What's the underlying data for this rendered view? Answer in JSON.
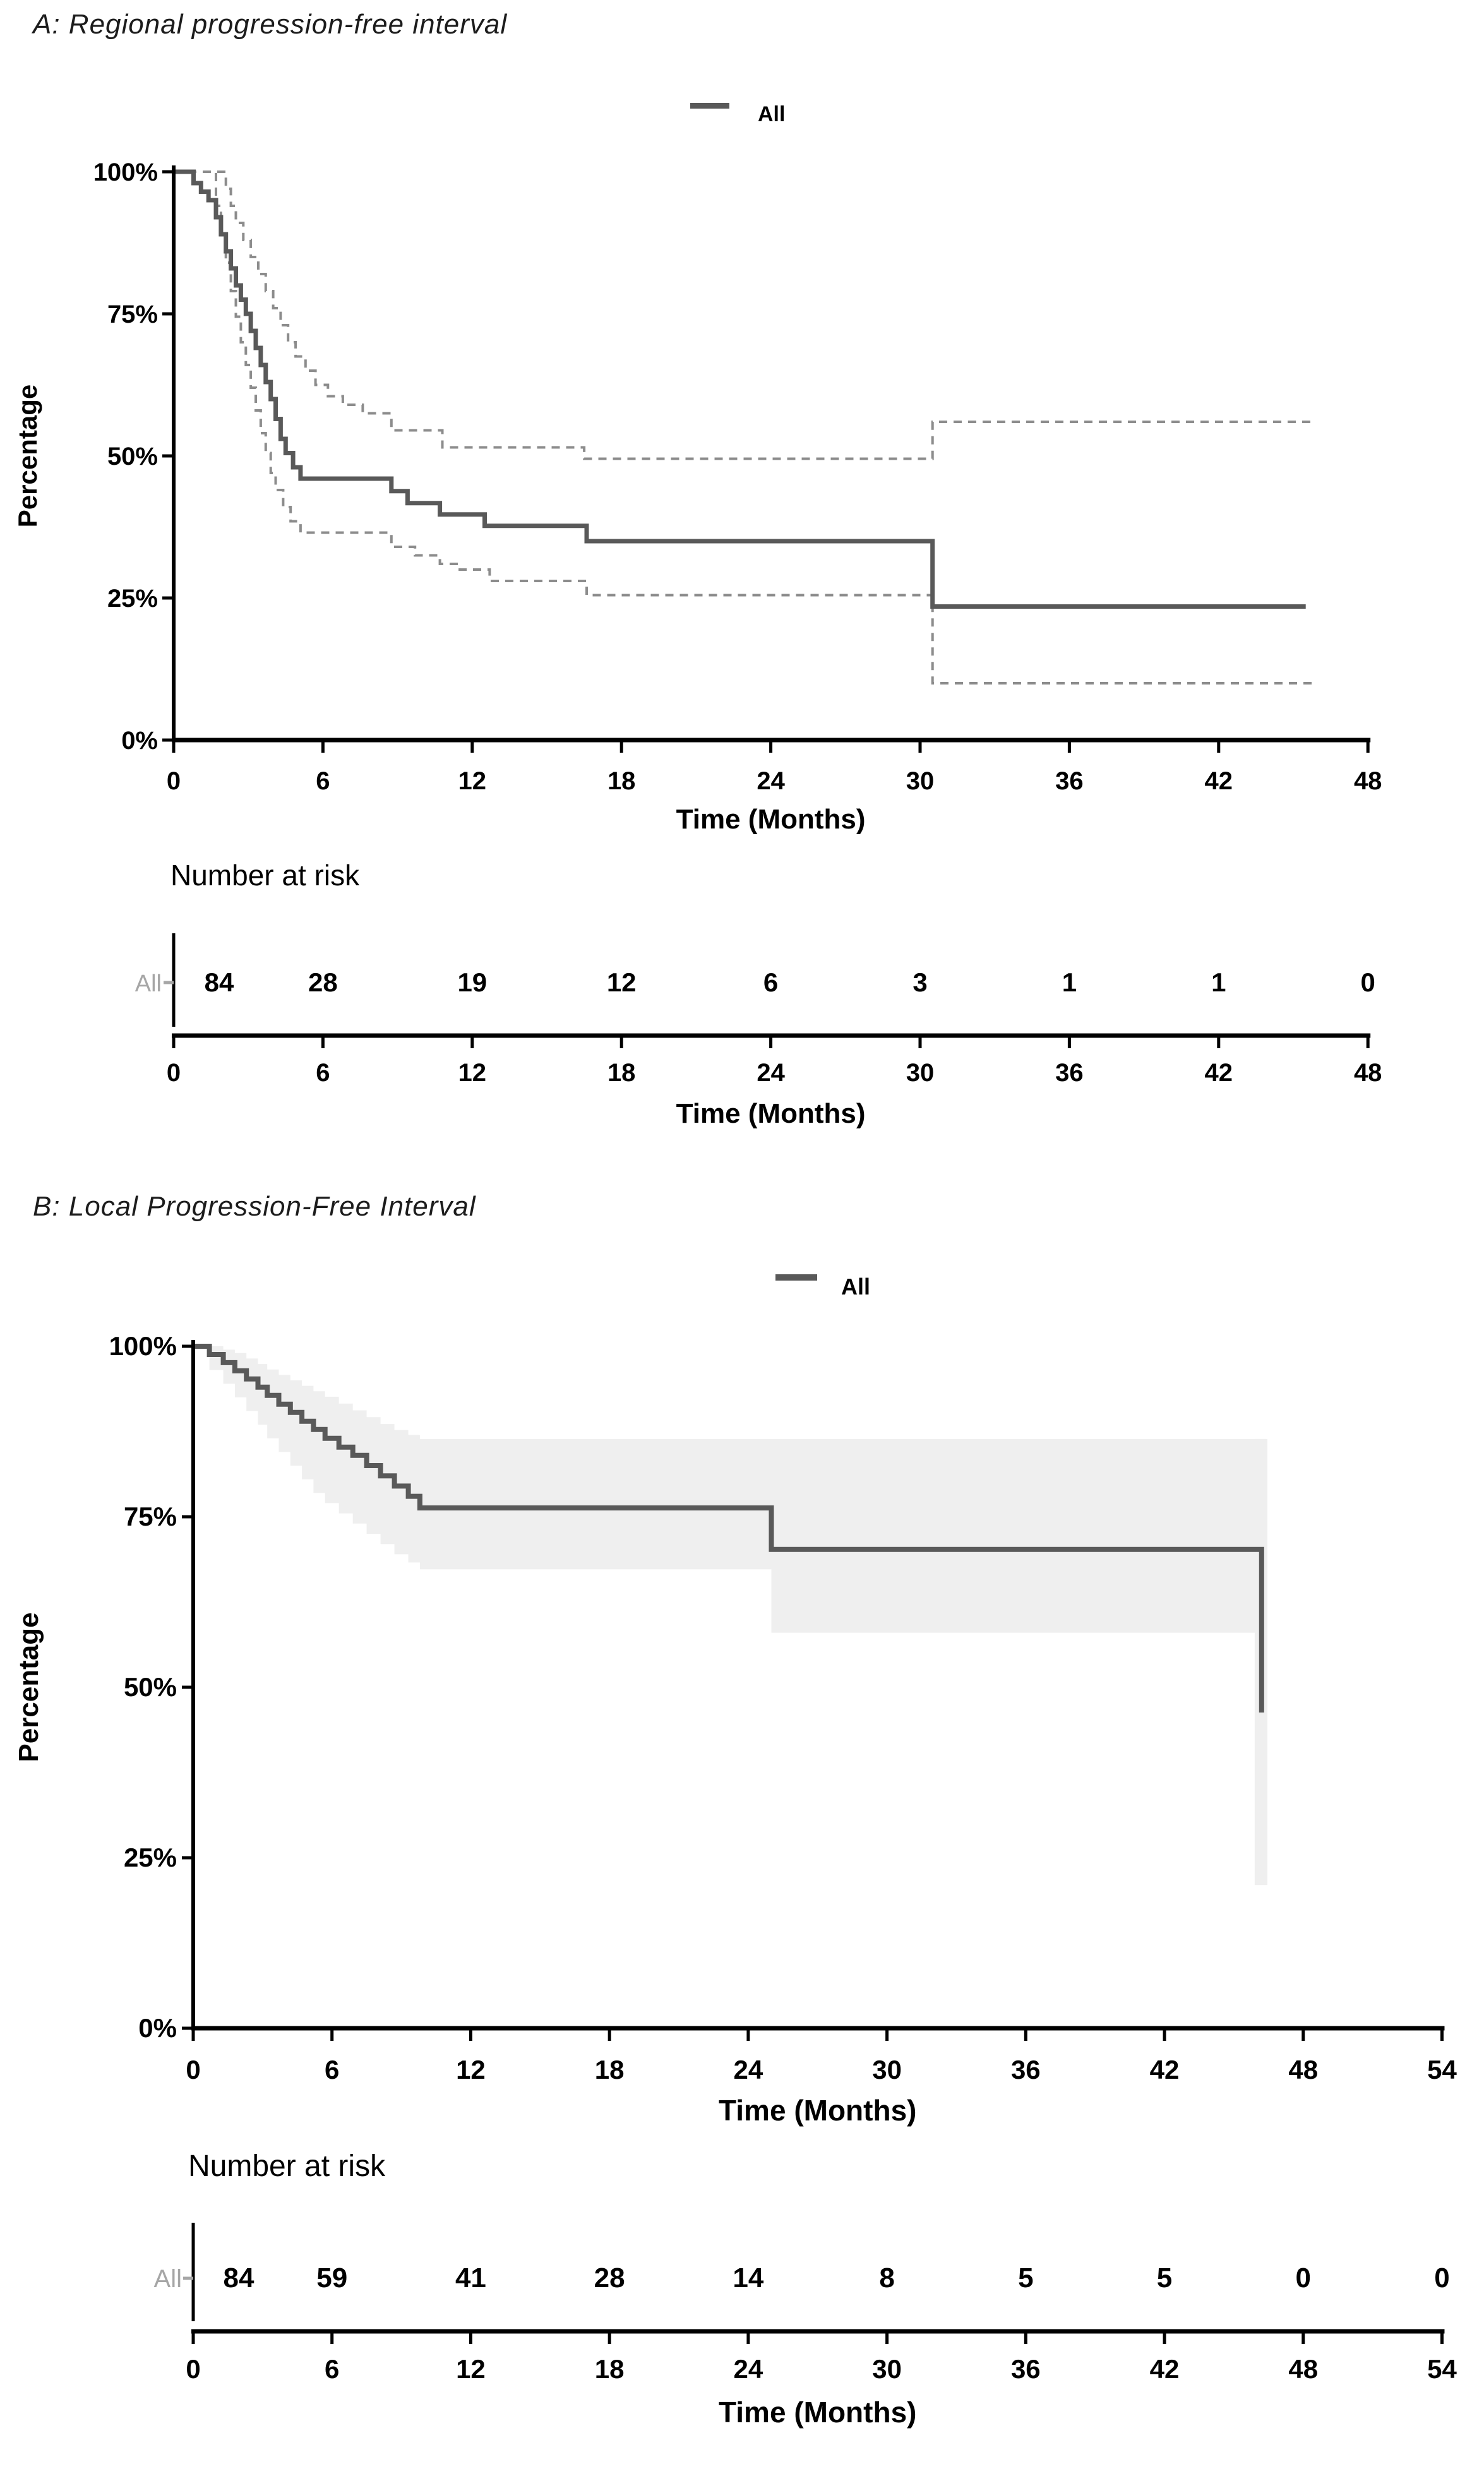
{
  "figure": {
    "background": "#ffffff",
    "panel_a_title": "A: Regional progression-free interval",
    "panel_b_title": "B: Local Progression-Free Interval"
  },
  "chart_data": [
    {
      "type": "line",
      "subtype": "kaplan-meier-step",
      "title": "A: Regional progression-free interval",
      "legend": {
        "label": "All",
        "position": "top-center"
      },
      "xlabel": "Time (Months)",
      "ylabel": "Percentage",
      "xlim": [
        0,
        48
      ],
      "xticks": [
        0,
        6,
        12,
        18,
        24,
        30,
        36,
        42,
        48
      ],
      "yticks": [
        {
          "v": 100,
          "label": "100%"
        },
        {
          "v": 75,
          "label": "75%"
        },
        {
          "v": 50,
          "label": "50%"
        },
        {
          "v": 25,
          "label": "25%"
        },
        {
          "v": 0,
          "label": "0%"
        }
      ],
      "grid": false,
      "series": [
        {
          "name": "All",
          "style": "solid",
          "points": [
            [
              0,
              100
            ],
            [
              0.8,
              98
            ],
            [
              1.1,
              96.5
            ],
            [
              1.4,
              95
            ],
            [
              1.7,
              92
            ],
            [
              1.9,
              89
            ],
            [
              2.1,
              86
            ],
            [
              2.3,
              83
            ],
            [
              2.5,
              80
            ],
            [
              2.7,
              77.5
            ],
            [
              2.9,
              75
            ],
            [
              3.1,
              72
            ],
            [
              3.3,
              69
            ],
            [
              3.5,
              66
            ],
            [
              3.7,
              63
            ],
            [
              3.9,
              60
            ],
            [
              4.1,
              56.5
            ],
            [
              4.3,
              53
            ],
            [
              4.5,
              50.5
            ],
            [
              4.8,
              48
            ],
            [
              5.1,
              46
            ],
            [
              8.75,
              43.8
            ],
            [
              9.4,
              41.7
            ],
            [
              10.7,
              39.7
            ],
            [
              12.5,
              37.7
            ],
            [
              16.6,
              35
            ],
            [
              30.5,
              23.5
            ]
          ],
          "end_t": 45.5
        }
      ],
      "ci_lines": {
        "style": "dashed",
        "upper": {
          "points": [
            [
              0,
              100
            ],
            [
              1.9,
              100
            ],
            [
              2.1,
              97
            ],
            [
              2.3,
              94
            ],
            [
              2.5,
              91
            ],
            [
              2.8,
              88
            ],
            [
              3.1,
              85
            ],
            [
              3.4,
              82
            ],
            [
              3.7,
              79
            ],
            [
              4.0,
              76
            ],
            [
              4.3,
              73
            ],
            [
              4.6,
              70
            ],
            [
              4.9,
              67.5
            ],
            [
              5.3,
              65
            ],
            [
              5.7,
              62.5
            ],
            [
              6.2,
              60.5
            ],
            [
              6.8,
              59
            ],
            [
              7.6,
              57.5
            ],
            [
              8.75,
              54.5
            ],
            [
              10.8,
              51.5
            ],
            [
              16.5,
              49.5
            ],
            [
              30.5,
              56
            ]
          ],
          "end_t": 45.8
        },
        "lower": {
          "points": [
            [
              0,
              100
            ],
            [
              1.5,
              100
            ],
            [
              1.7,
              94
            ],
            [
              1.9,
              89
            ],
            [
              2.1,
              84
            ],
            [
              2.3,
              79
            ],
            [
              2.5,
              74.5
            ],
            [
              2.7,
              70
            ],
            [
              2.9,
              66
            ],
            [
              3.1,
              62
            ],
            [
              3.3,
              58
            ],
            [
              3.5,
              54
            ],
            [
              3.7,
              50.5
            ],
            [
              3.9,
              47
            ],
            [
              4.1,
              44
            ],
            [
              4.4,
              41
            ],
            [
              4.7,
              38.5
            ],
            [
              5.1,
              36.5
            ],
            [
              8.75,
              34
            ],
            [
              9.7,
              32.5
            ],
            [
              10.7,
              31
            ],
            [
              11.5,
              30
            ],
            [
              12.7,
              28
            ],
            [
              16.6,
              25.5
            ],
            [
              30.5,
              10
            ]
          ],
          "end_t": 45.8
        }
      },
      "number_at_risk": {
        "title": "Number at risk",
        "row_label": "All",
        "times": [
          0,
          6,
          12,
          18,
          24,
          30,
          36,
          42,
          48
        ],
        "counts": [
          84,
          28,
          19,
          12,
          6,
          3,
          1,
          1,
          0
        ],
        "xlabel": "Time (Months)"
      },
      "colors": {
        "curve": "#595959",
        "ci": "#8c8c8c",
        "band": "#efefef",
        "axis": "#000000",
        "tick_text": "#000000",
        "risk_label": "#a6a6a6"
      }
    },
    {
      "type": "line",
      "subtype": "kaplan-meier-step",
      "title": "B: Local Progression-Free Interval",
      "legend": {
        "label": "All",
        "position": "top-center"
      },
      "xlabel": "Time (Months)",
      "ylabel": "Percentage",
      "xlim": [
        0,
        54
      ],
      "xticks": [
        0,
        6,
        12,
        18,
        24,
        30,
        36,
        42,
        48,
        54
      ],
      "yticks": [
        {
          "v": 100,
          "label": "100%"
        },
        {
          "v": 75,
          "label": "75%"
        },
        {
          "v": 50,
          "label": "50%"
        },
        {
          "v": 25,
          "label": "25%"
        },
        {
          "v": 0,
          "label": "0%"
        }
      ],
      "grid": false,
      "series": [
        {
          "name": "All",
          "style": "solid",
          "points": [
            [
              0,
              100
            ],
            [
              0.7,
              98.8
            ],
            [
              1.3,
              97.6
            ],
            [
              1.8,
              96.4
            ],
            [
              2.3,
              95.2
            ],
            [
              2.8,
              94
            ],
            [
              3.2,
              92.8
            ],
            [
              3.7,
              91.5
            ],
            [
              4.2,
              90.3
            ],
            [
              4.7,
              89
            ],
            [
              5.2,
              87.8
            ],
            [
              5.7,
              86.5
            ],
            [
              6.3,
              85.2
            ],
            [
              6.9,
              84
            ],
            [
              7.5,
              82.5
            ],
            [
              8.1,
              81
            ],
            [
              8.7,
              79.5
            ],
            [
              9.3,
              78
            ],
            [
              9.8,
              76.3
            ],
            [
              25,
              70.2
            ],
            [
              46.2,
              46.3
            ]
          ],
          "end_t": null
        }
      ],
      "ci_band": {
        "fill": "#efefef",
        "upper": {
          "points": [
            [
              0,
              100
            ],
            [
              1.3,
              99.5
            ],
            [
              1.8,
              99
            ],
            [
              2.3,
              98.2
            ],
            [
              2.8,
              97.4
            ],
            [
              3.2,
              96.6
            ],
            [
              3.7,
              95.8
            ],
            [
              4.2,
              95
            ],
            [
              4.7,
              94.2
            ],
            [
              5.2,
              93.4
            ],
            [
              5.7,
              92.6
            ],
            [
              6.3,
              91.6
            ],
            [
              6.9,
              90.6
            ],
            [
              7.5,
              89.6
            ],
            [
              8.1,
              88.6
            ],
            [
              8.7,
              87.7
            ],
            [
              9.3,
              87
            ],
            [
              9.8,
              86.4
            ]
          ],
          "end_t": 46.4
        },
        "lower": {
          "points": [
            [
              0,
              100
            ],
            [
              0.7,
              96.5
            ],
            [
              1.3,
              94.5
            ],
            [
              1.8,
              92.5
            ],
            [
              2.3,
              90.5
            ],
            [
              2.8,
              88.5
            ],
            [
              3.2,
              86.5
            ],
            [
              3.7,
              84.5
            ],
            [
              4.2,
              82.5
            ],
            [
              4.7,
              80.5
            ],
            [
              5.2,
              78.5
            ],
            [
              5.7,
              77
            ],
            [
              6.3,
              75.5
            ],
            [
              6.9,
              74
            ],
            [
              7.5,
              72.5
            ],
            [
              8.1,
              71
            ],
            [
              8.7,
              69.5
            ],
            [
              9.3,
              68.3
            ],
            [
              9.8,
              67.3
            ],
            [
              25,
              58
            ]
          ],
          "end_t": 46.4
        },
        "terminal_band": {
          "t1": 45.9,
          "t2": 46.45,
          "s_top": 86.4,
          "s_bottom": 21
        }
      },
      "number_at_risk": {
        "title": "Number at risk",
        "row_label": "All",
        "times": [
          0,
          6,
          12,
          18,
          24,
          30,
          36,
          42,
          48,
          54
        ],
        "counts": [
          84,
          59,
          41,
          28,
          14,
          8,
          5,
          5,
          0,
          0
        ],
        "xlabel": "Time (Months)"
      },
      "colors": {
        "curve": "#595959",
        "ci": "#8c8c8c",
        "band": "#efefef",
        "axis": "#000000",
        "tick_text": "#000000",
        "risk_label": "#a6a6a6"
      }
    }
  ]
}
